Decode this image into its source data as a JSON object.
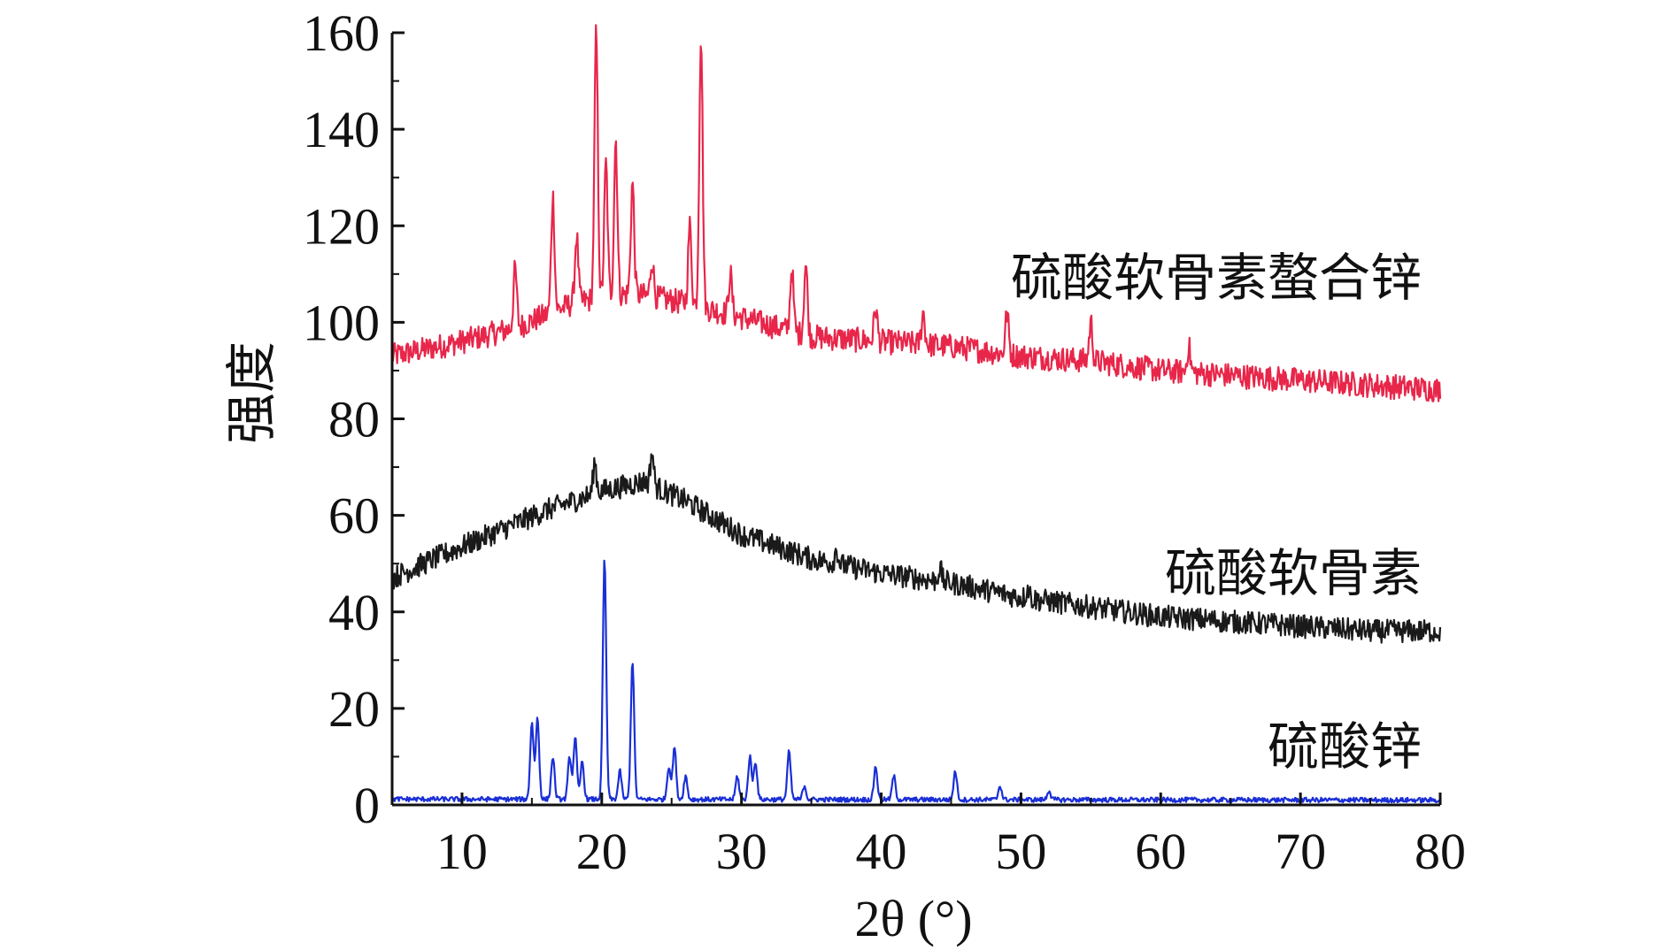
{
  "chart_data": {
    "type": "line",
    "title": "",
    "xlabel": "2θ (°)",
    "ylabel": "强度",
    "xlim": [
      5,
      80
    ],
    "ylim": [
      0,
      160
    ],
    "x_ticks": [
      10,
      20,
      30,
      40,
      50,
      60,
      70,
      80
    ],
    "y_ticks": [
      0,
      20,
      40,
      60,
      80,
      100,
      120,
      140,
      160
    ],
    "grid": false,
    "series": [
      {
        "name": "硫酸软骨素螯合锌",
        "color": "#e8264a",
        "baseline": [
          [
            5,
            93
          ],
          [
            10,
            96
          ],
          [
            14,
            99
          ],
          [
            18,
            104
          ],
          [
            22,
            106
          ],
          [
            26,
            104
          ],
          [
            30,
            101
          ],
          [
            35,
            97
          ],
          [
            40,
            96
          ],
          [
            45,
            95
          ],
          [
            50,
            93
          ],
          [
            55,
            92
          ],
          [
            60,
            90
          ],
          [
            65,
            89
          ],
          [
            70,
            88
          ],
          [
            75,
            87
          ],
          [
            80,
            86
          ]
        ],
        "noise": 2.6,
        "peaks": [
          [
            13.8,
            111
          ],
          [
            16.5,
            126
          ],
          [
            18.2,
            118
          ],
          [
            19.6,
            160
          ],
          [
            20.3,
            133
          ],
          [
            21.0,
            138
          ],
          [
            22.2,
            129
          ],
          [
            23.6,
            113
          ],
          [
            26.3,
            120
          ],
          [
            27.1,
            160
          ],
          [
            29.2,
            110
          ],
          [
            33.6,
            111
          ],
          [
            34.6,
            112
          ],
          [
            39.6,
            103
          ],
          [
            43.0,
            102
          ],
          [
            49.0,
            102
          ],
          [
            55.0,
            100
          ],
          [
            62.0,
            95
          ]
        ]
      },
      {
        "name": "硫酸软骨素",
        "color": "#1a1a1a",
        "baseline": [
          [
            5,
            47
          ],
          [
            8,
            51
          ],
          [
            12,
            56
          ],
          [
            16,
            61
          ],
          [
            20,
            65
          ],
          [
            23,
            67
          ],
          [
            26,
            63
          ],
          [
            30,
            56
          ],
          [
            35,
            51
          ],
          [
            40,
            48
          ],
          [
            45,
            46
          ],
          [
            50,
            43
          ],
          [
            55,
            41
          ],
          [
            60,
            39
          ],
          [
            65,
            38
          ],
          [
            70,
            37
          ],
          [
            75,
            36
          ],
          [
            80,
            36
          ]
        ],
        "noise": 2.4,
        "peaks": [
          [
            19.5,
            71
          ],
          [
            23.6,
            73
          ],
          [
            36.8,
            53
          ],
          [
            44.2,
            49
          ],
          [
            50.5,
            45
          ]
        ]
      },
      {
        "name": "硫酸锌",
        "color": "#1a2fd6",
        "baseline": [
          [
            5,
            1.2
          ],
          [
            80,
            1.0
          ]
        ],
        "noise": 0.5,
        "peaks": [
          [
            15.0,
            17
          ],
          [
            15.4,
            18
          ],
          [
            16.5,
            10
          ],
          [
            17.7,
            10
          ],
          [
            18.1,
            14
          ],
          [
            18.6,
            9
          ],
          [
            20.2,
            51
          ],
          [
            21.3,
            7
          ],
          [
            22.2,
            30
          ],
          [
            24.8,
            8
          ],
          [
            25.2,
            12
          ],
          [
            26.0,
            6
          ],
          [
            29.7,
            6
          ],
          [
            30.6,
            10
          ],
          [
            31.0,
            9
          ],
          [
            33.4,
            11
          ],
          [
            34.5,
            4
          ],
          [
            39.6,
            8
          ],
          [
            40.9,
            6
          ],
          [
            45.3,
            7
          ],
          [
            48.5,
            4
          ],
          [
            52.0,
            3
          ]
        ]
      }
    ],
    "labels": {
      "chelate": "硫酸软骨素螯合锌",
      "chondroitin": "硫酸软骨素",
      "zinc": "硫酸锌"
    }
  }
}
